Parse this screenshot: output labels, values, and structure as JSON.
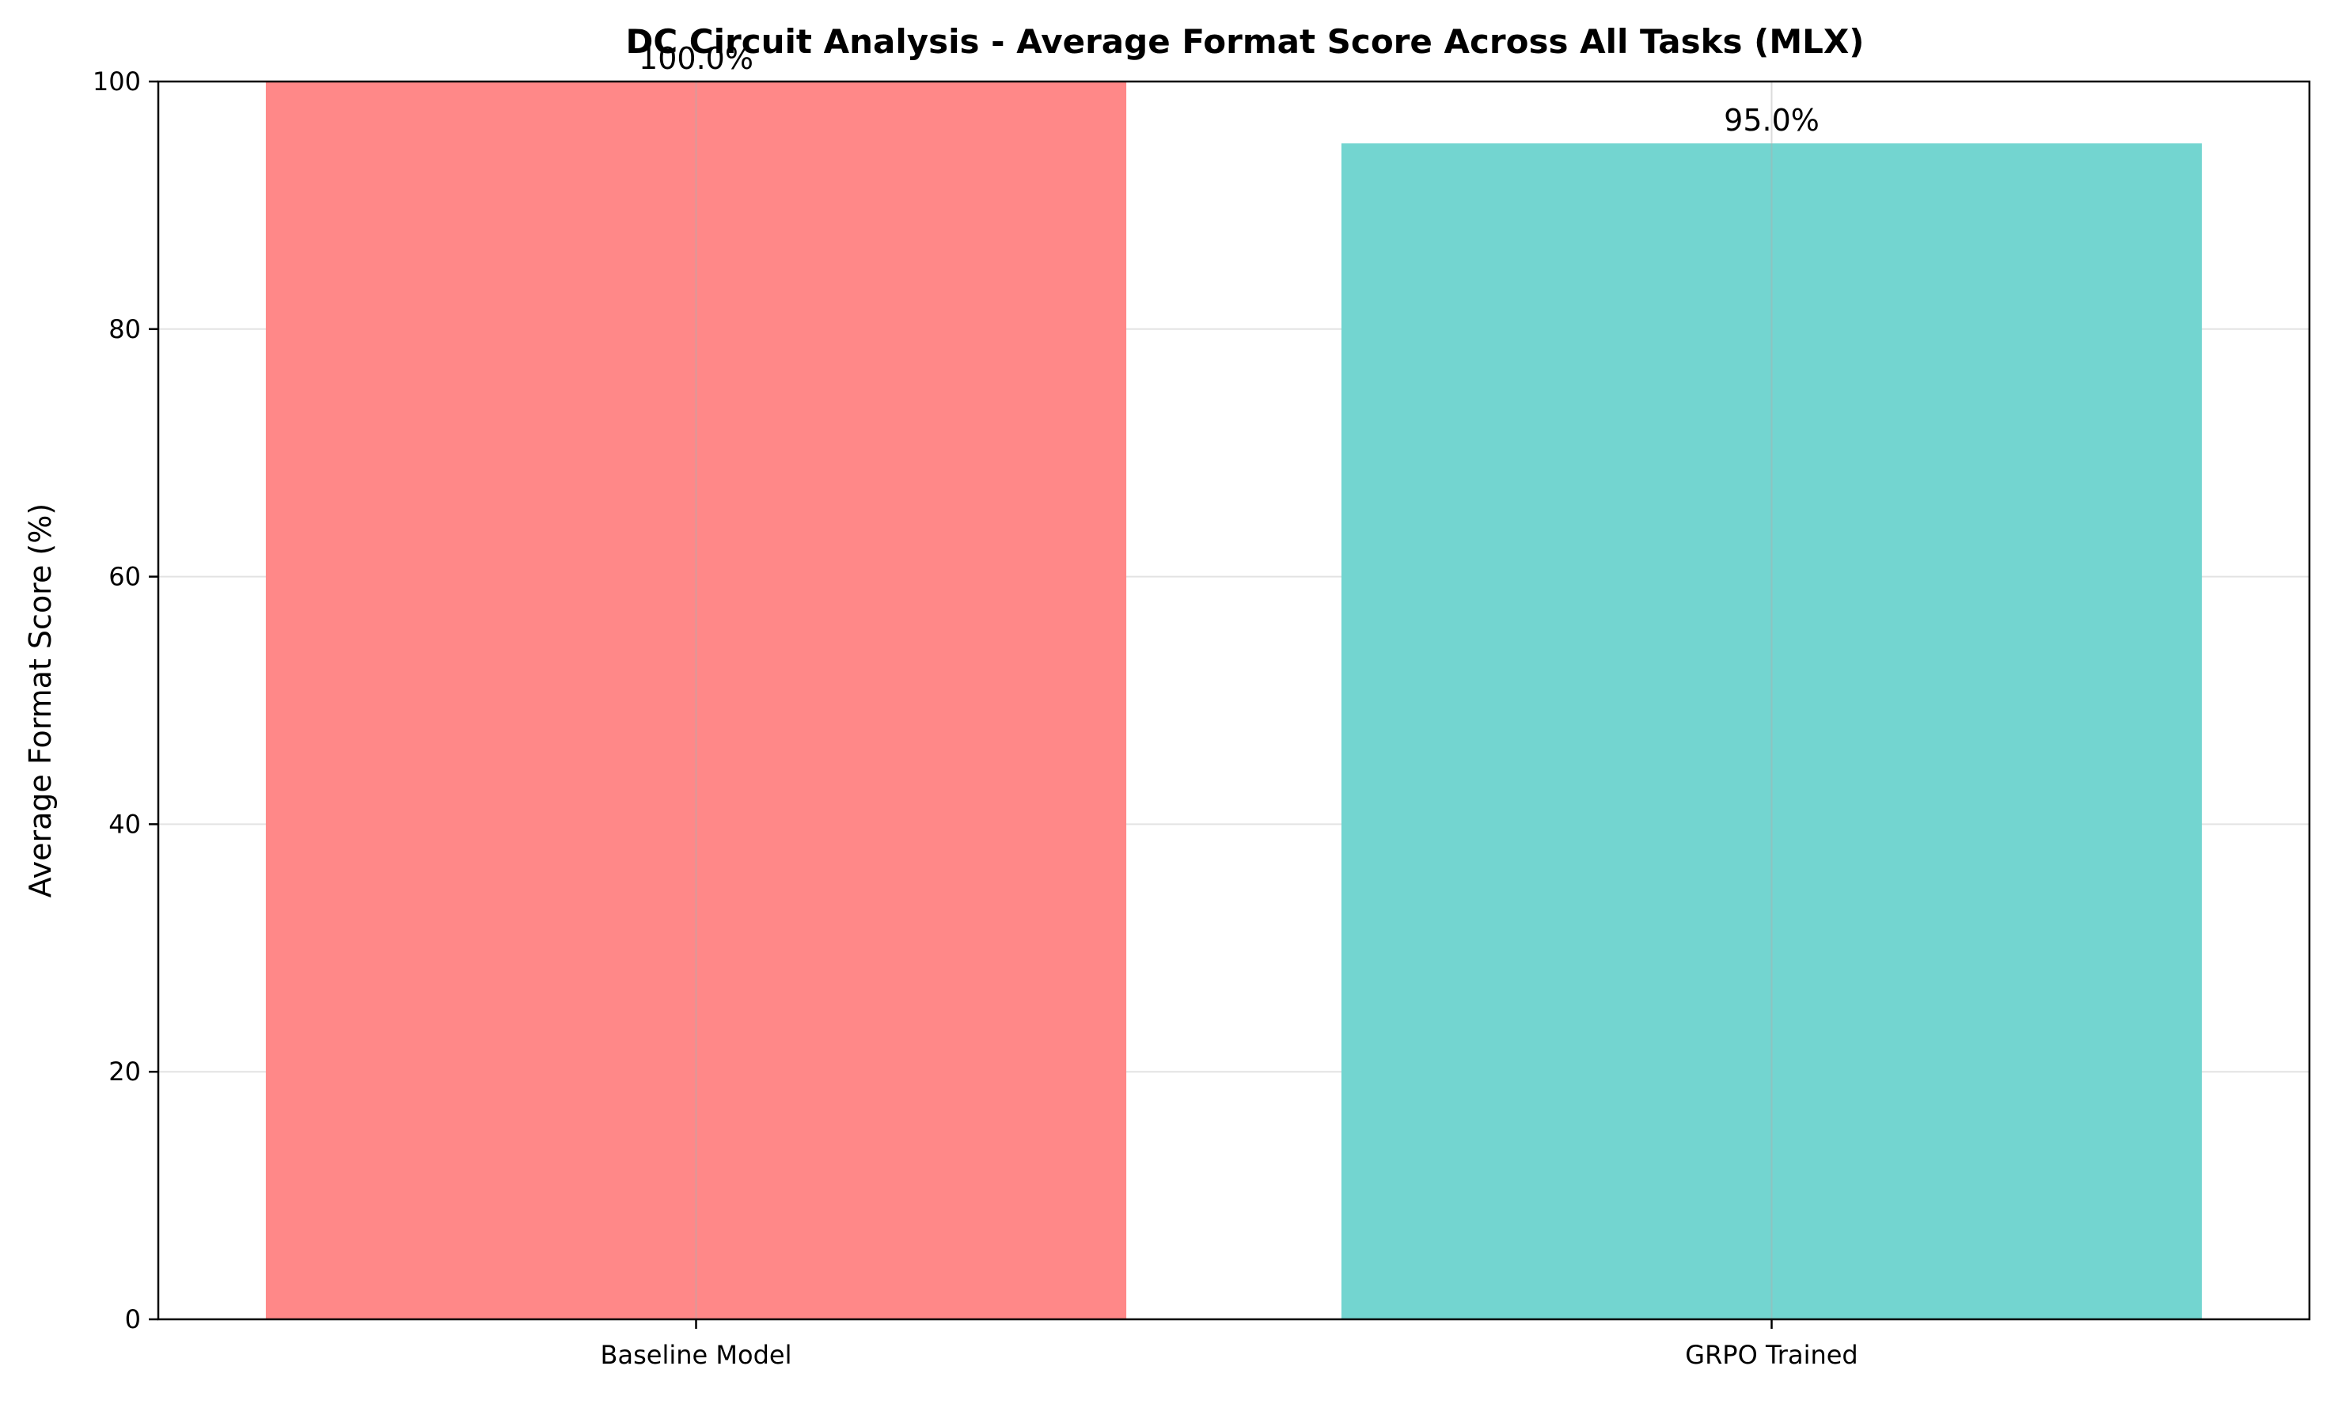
{
  "chart_data": {
    "type": "bar",
    "title": "DC Circuit Analysis - Average Format Score Across All Tasks (MLX)",
    "xlabel": "",
    "ylabel": "Average Format Score (%)",
    "categories": [
      "Baseline Model",
      "GRPO Trained"
    ],
    "values": [
      100.0,
      95.0
    ],
    "value_labels": [
      "100.0%",
      "95.0%"
    ],
    "colors": [
      "#FF8888",
      "#73D5D0"
    ],
    "ylim": [
      0,
      100
    ],
    "yticks": [
      0,
      20,
      40,
      60,
      80,
      100
    ],
    "ytick_labels": [
      "0",
      "20",
      "40",
      "60",
      "80",
      "100"
    ],
    "grid": true,
    "legend": "none"
  }
}
